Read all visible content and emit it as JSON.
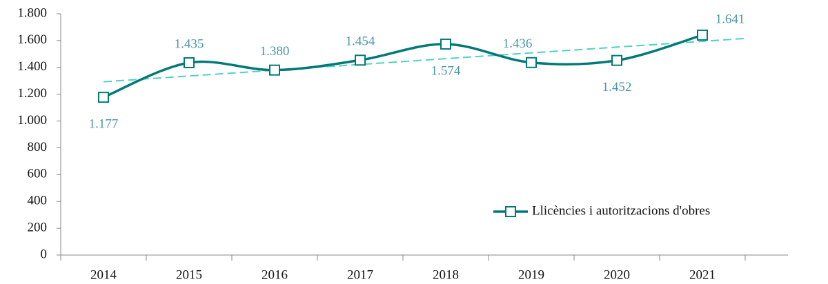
{
  "chart_data": {
    "type": "line",
    "categories": [
      "2014",
      "2015",
      "2016",
      "2017",
      "2018",
      "2019",
      "2020",
      "2021"
    ],
    "series": [
      {
        "name": "Llicències i autoritzacions d'obres",
        "color": "#007a78",
        "values": [
          1177,
          1435,
          1380,
          1454,
          1574,
          1436,
          1452,
          1641
        ],
        "value_labels": [
          "1.177",
          "1.435",
          "1.380",
          "1.454",
          "1.574",
          "1.436",
          "1.452",
          "1.641"
        ]
      }
    ],
    "trendline": {
      "type": "linear",
      "color": "#4fd1c5",
      "forward": 0.5
    },
    "smooth": true,
    "ylim": [
      0,
      1800
    ],
    "yticks": [
      0,
      200,
      400,
      600,
      800,
      {
        "value": 1000,
        "label": "1.000"
      },
      {
        "value": 1200,
        "label": "1.200"
      },
      {
        "value": 1400,
        "label": "1.400"
      },
      {
        "value": 1600,
        "label": "1.600"
      },
      {
        "value": 1800,
        "label": "1.800"
      }
    ],
    "legend": "lower right"
  }
}
